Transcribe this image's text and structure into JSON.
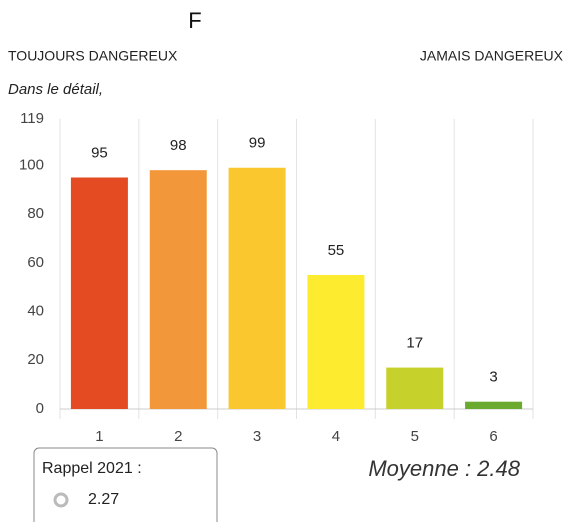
{
  "chart_data": {
    "type": "bar",
    "title": "F",
    "left_label": "TOUJOURS DANGEREUX",
    "right_label": "JAMAIS DANGEREUX",
    "subtitle": "Dans le détail,",
    "categories": [
      "1",
      "2",
      "3",
      "4",
      "5",
      "6"
    ],
    "values": [
      95,
      98,
      99,
      55,
      17,
      3
    ],
    "colors": [
      "#e44b22",
      "#f2983a",
      "#fac72e",
      "#fdeb30",
      "#c7d12c",
      "#6aaa2e"
    ],
    "ylim": [
      0,
      119
    ],
    "yticks": [
      0,
      20,
      40,
      60,
      80,
      100,
      119
    ],
    "grid": true,
    "recall": {
      "label": "Rappel 2021 :",
      "value": "2.27"
    },
    "average": "Moyenne : 2.48"
  }
}
